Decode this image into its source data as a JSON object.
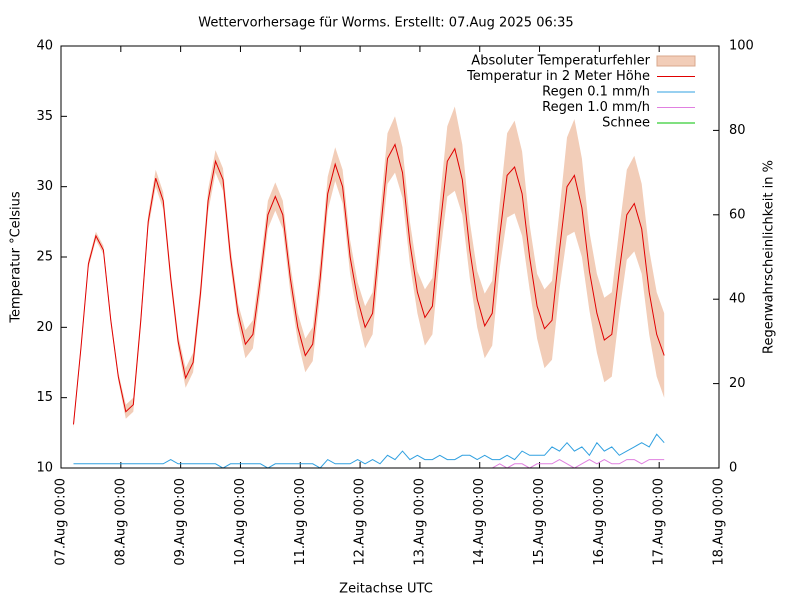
{
  "chart_data": {
    "type": "line",
    "title": "Wettervorhersage für Worms. Erstellt: 07.Aug 2025 06:35",
    "x_label": "Zeitachse UTC",
    "y_label": "Temperatur °Celsius",
    "y2_label": "Regenwahrscheinlichkeit in %",
    "legend": "top-right",
    "xlim": [
      "07.Aug 00:00",
      "18.Aug 00:00"
    ],
    "xticks": [
      "07.Aug 00:00",
      "08.Aug 00:00",
      "09.Aug 00:00",
      "10.Aug 00:00",
      "11.Aug 00:00",
      "12.Aug 00:00",
      "13.Aug 00:00",
      "14.Aug 00:00",
      "15.Aug 00:00",
      "16.Aug 00:00",
      "17.Aug 00:00",
      "18.Aug 00:00"
    ],
    "ylim": [
      10,
      40
    ],
    "yticks": [
      10,
      15,
      20,
      25,
      30,
      35,
      40
    ],
    "y2lim": [
      0,
      100
    ],
    "y2ticks": [
      0,
      20,
      40,
      60,
      80,
      100
    ],
    "x": [
      "07.Aug 05:00",
      "07.Aug 08:00",
      "07.Aug 11:00",
      "07.Aug 14:00",
      "07.Aug 17:00",
      "07.Aug 20:00",
      "07.Aug 23:00",
      "08.Aug 02:00",
      "08.Aug 05:00",
      "08.Aug 08:00",
      "08.Aug 11:00",
      "08.Aug 14:00",
      "08.Aug 17:00",
      "08.Aug 20:00",
      "08.Aug 23:00",
      "09.Aug 02:00",
      "09.Aug 05:00",
      "09.Aug 08:00",
      "09.Aug 11:00",
      "09.Aug 14:00",
      "09.Aug 17:00",
      "09.Aug 20:00",
      "09.Aug 23:00",
      "10.Aug 02:00",
      "10.Aug 05:00",
      "10.Aug 08:00",
      "10.Aug 11:00",
      "10.Aug 14:00",
      "10.Aug 17:00",
      "10.Aug 20:00",
      "10.Aug 23:00",
      "11.Aug 02:00",
      "11.Aug 05:00",
      "11.Aug 08:00",
      "11.Aug 11:00",
      "11.Aug 14:00",
      "11.Aug 17:00",
      "11.Aug 20:00",
      "11.Aug 23:00",
      "12.Aug 02:00",
      "12.Aug 05:00",
      "12.Aug 08:00",
      "12.Aug 11:00",
      "12.Aug 14:00",
      "12.Aug 17:00",
      "12.Aug 20:00",
      "12.Aug 23:00",
      "13.Aug 02:00",
      "13.Aug 05:00",
      "13.Aug 08:00",
      "13.Aug 11:00",
      "13.Aug 14:00",
      "13.Aug 17:00",
      "13.Aug 20:00",
      "13.Aug 23:00",
      "14.Aug 02:00",
      "14.Aug 05:00",
      "14.Aug 08:00",
      "14.Aug 11:00",
      "14.Aug 14:00",
      "14.Aug 17:00",
      "14.Aug 20:00",
      "14.Aug 23:00",
      "15.Aug 02:00",
      "15.Aug 05:00",
      "15.Aug 08:00",
      "15.Aug 11:00",
      "15.Aug 14:00",
      "15.Aug 17:00",
      "15.Aug 20:00",
      "15.Aug 23:00",
      "16.Aug 02:00",
      "16.Aug 05:00",
      "16.Aug 08:00",
      "16.Aug 11:00",
      "16.Aug 14:00",
      "16.Aug 17:00",
      "16.Aug 20:00",
      "16.Aug 23:00",
      "17.Aug 02:00"
    ],
    "series": [
      {
        "name": "Absoluter Temperaturfehler",
        "type": "band",
        "color": "#f2cdb8",
        "values": [
          0.3,
          0.3,
          0.3,
          0.3,
          0.3,
          0.3,
          0.3,
          0.5,
          0.5,
          0.5,
          0.5,
          0.6,
          0.6,
          0.5,
          0.5,
          0.7,
          0.7,
          0.7,
          0.8,
          0.8,
          0.8,
          0.7,
          0.7,
          1.0,
          1.0,
          1.0,
          1.0,
          1.0,
          1.0,
          1.0,
          1.0,
          1.2,
          1.2,
          1.2,
          1.2,
          1.2,
          1.2,
          1.2,
          1.2,
          1.5,
          1.5,
          1.5,
          1.8,
          2.0,
          1.8,
          1.5,
          1.5,
          2.0,
          2.0,
          2.0,
          2.5,
          3.0,
          2.5,
          2.0,
          2.0,
          2.3,
          2.3,
          2.3,
          3.0,
          3.3,
          3.0,
          2.3,
          2.3,
          2.8,
          2.8,
          2.8,
          3.5,
          4.0,
          3.5,
          2.8,
          2.8,
          3.0,
          3.0,
          3.0,
          3.2,
          3.4,
          3.2,
          3.0,
          3.0,
          3.0
        ]
      },
      {
        "name": "Temperatur in 2 Meter Höhe",
        "type": "line",
        "color": "#e00000",
        "values": [
          13.1,
          18.5,
          24.5,
          26.5,
          25.5,
          20.5,
          16.5,
          14.0,
          14.5,
          20.5,
          27.5,
          30.6,
          29.0,
          23.5,
          19.0,
          16.4,
          17.5,
          22.5,
          29.0,
          31.8,
          30.5,
          25.0,
          21.0,
          18.8,
          19.5,
          23.5,
          28.0,
          29.3,
          28.0,
          23.5,
          20.0,
          18.0,
          18.8,
          23.5,
          29.5,
          31.6,
          30.0,
          25.0,
          22.0,
          20.0,
          21.0,
          26.5,
          32.0,
          33.0,
          31.0,
          26.0,
          22.5,
          20.7,
          21.5,
          27.0,
          31.8,
          32.7,
          30.5,
          25.5,
          22.0,
          20.1,
          21.0,
          26.5,
          30.8,
          31.4,
          29.5,
          25.0,
          21.5,
          19.9,
          20.5,
          25.5,
          30.0,
          30.8,
          28.5,
          24.0,
          21.0,
          19.1,
          19.5,
          24.0,
          28.0,
          28.8,
          27.0,
          22.5,
          19.5,
          18.0
        ]
      },
      {
        "name": "Regen 0.1 mm/h",
        "type": "line",
        "axis": "y2",
        "color": "#30a0e0",
        "values": [
          1,
          1,
          1,
          1,
          1,
          1,
          1,
          1,
          1,
          1,
          1,
          1,
          1,
          2,
          1,
          1,
          1,
          1,
          1,
          1,
          0,
          1,
          1,
          1,
          1,
          1,
          0,
          1,
          1,
          1,
          1,
          1,
          1,
          0,
          2,
          1,
          1,
          1,
          2,
          1,
          2,
          1,
          3,
          2,
          4,
          2,
          3,
          2,
          2,
          3,
          2,
          2,
          3,
          3,
          2,
          3,
          2,
          2,
          3,
          2,
          4,
          3,
          3,
          3,
          5,
          4,
          6,
          4,
          5,
          3,
          6,
          4,
          5,
          3,
          4,
          5,
          6,
          5,
          8,
          6
        ]
      },
      {
        "name": "Regen 1.0 mm/h",
        "type": "line",
        "axis": "y2",
        "color": "#e080e0",
        "values": [
          0,
          0,
          0,
          0,
          0,
          0,
          0,
          0,
          0,
          0,
          0,
          0,
          0,
          0,
          0,
          0,
          0,
          0,
          0,
          0,
          0,
          0,
          0,
          0,
          0,
          0,
          0,
          0,
          0,
          0,
          0,
          0,
          0,
          0,
          0,
          0,
          0,
          0,
          0,
          0,
          0,
          0,
          0,
          0,
          0,
          0,
          0,
          0,
          0,
          0,
          0,
          0,
          0,
          0,
          0,
          0,
          0,
          1,
          0,
          1,
          1,
          0,
          1,
          1,
          1,
          2,
          1,
          0,
          1,
          2,
          1,
          2,
          1,
          1,
          2,
          2,
          1,
          2,
          2,
          2
        ]
      },
      {
        "name": "Schnee",
        "type": "line",
        "axis": "y2",
        "color": "#00c000",
        "values": [
          0,
          0,
          0,
          0,
          0,
          0,
          0,
          0,
          0,
          0,
          0,
          0,
          0,
          0,
          0,
          0,
          0,
          0,
          0,
          0,
          0,
          0,
          0,
          0,
          0,
          0,
          0,
          0,
          0,
          0,
          0,
          0,
          0,
          0,
          0,
          0,
          0,
          0,
          0,
          0,
          0,
          0,
          0,
          0,
          0,
          0,
          0,
          0,
          0,
          0,
          0,
          0,
          0,
          0,
          0,
          0,
          0,
          0,
          0,
          0,
          0,
          0,
          0,
          0,
          0,
          0,
          0,
          0,
          0,
          0,
          0,
          0,
          0,
          0,
          0,
          0,
          0,
          0,
          0,
          0
        ]
      }
    ]
  }
}
